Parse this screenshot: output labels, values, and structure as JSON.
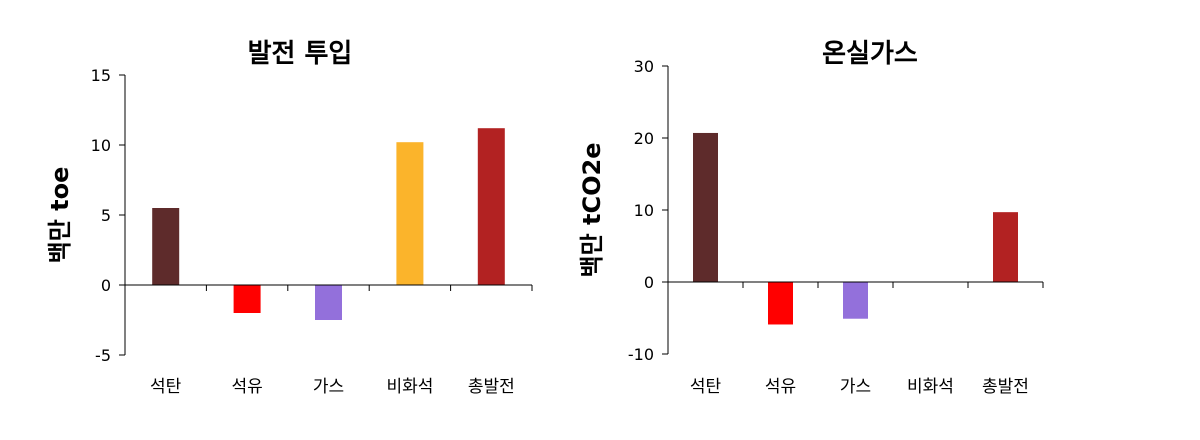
{
  "chart_data": [
    {
      "type": "bar",
      "title": "발전 투입",
      "ylabel": "백만 toe",
      "xlabel": "",
      "categories": [
        "석탄",
        "석유",
        "가스",
        "비화석",
        "총발전"
      ],
      "values": [
        5.5,
        -2.0,
        -2.5,
        10.2,
        11.2
      ],
      "colors": [
        "#5e2b2b",
        "#ff0000",
        "#9370db",
        "#fbb42b",
        "#b22222"
      ],
      "ylim": [
        -5,
        15
      ],
      "yticks": [
        -5,
        0,
        5,
        10,
        15
      ],
      "ytick_labels": [
        "-5",
        "0",
        "5",
        "10",
        "15"
      ],
      "grid": false,
      "legend": "none"
    },
    {
      "type": "bar",
      "title": "온실가스",
      "ylabel": "백만 tCO2e",
      "xlabel": "",
      "categories": [
        "석탄",
        "석유",
        "가스",
        "비화석",
        "총발전"
      ],
      "values": [
        20.7,
        -5.9,
        -5.1,
        0,
        9.7
      ],
      "colors": [
        "#5e2b2b",
        "#ff0000",
        "#9370db",
        "#fbb42b",
        "#b22222"
      ],
      "ylim": [
        -10,
        30
      ],
      "yticks": [
        -10,
        0,
        10,
        20,
        30
      ],
      "ytick_labels": [
        "-10",
        "0",
        "10",
        "20",
        "30"
      ],
      "grid": false,
      "legend": "none"
    }
  ]
}
